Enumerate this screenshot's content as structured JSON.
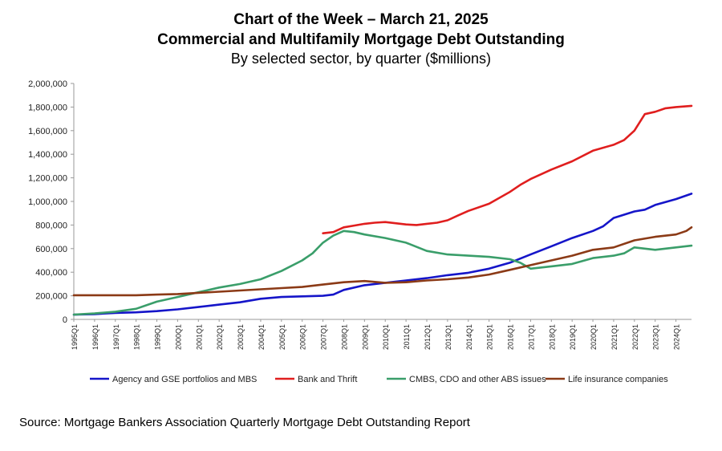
{
  "chart_data": {
    "type": "line",
    "title": "Chart of the Week – March 21, 2025",
    "subtitle": "Commercial and Multifamily Mortgage Debt Outstanding",
    "subtitle2": "By selected sector, by quarter ($millions)",
    "xlabel": "",
    "ylabel": "",
    "ylim": [
      0,
      2000000
    ],
    "yticks": [
      0,
      200000,
      400000,
      600000,
      800000,
      1000000,
      1200000,
      1400000,
      1600000,
      1800000,
      2000000
    ],
    "ytick_labels": [
      "0",
      "200,000",
      "400,000",
      "600,000",
      "800,000",
      "1,000,000",
      "1,200,000",
      "1,400,000",
      "1,600,000",
      "1,800,000",
      "2,000,000"
    ],
    "xlim": [
      1995.0,
      2024.75
    ],
    "xtick_labels": [
      "1995Q1",
      "1996Q1",
      "1997Q1",
      "1998Q1",
      "1999Q1",
      "2000Q1",
      "2001Q1",
      "2002Q1",
      "2003Q1",
      "2004Q1",
      "2005Q1",
      "2006Q1",
      "2007Q1",
      "2008Q1",
      "2009Q1",
      "2010Q1",
      "2011Q1",
      "2012Q1",
      "2013Q1",
      "2014Q1",
      "2015Q1",
      "2016Q1",
      "2017Q1",
      "2018Q1",
      "2019Q1",
      "2020Q1",
      "2021Q1",
      "2022Q1",
      "2023Q1",
      "2024Q1"
    ],
    "xtick_positions": [
      1995,
      1996,
      1997,
      1998,
      1999,
      2000,
      2001,
      2002,
      2003,
      2004,
      2005,
      2006,
      2007,
      2008,
      2009,
      2010,
      2011,
      2012,
      2013,
      2014,
      2015,
      2016,
      2017,
      2018,
      2019,
      2020,
      2021,
      2022,
      2023,
      2024
    ],
    "grid": false,
    "legend_position": "bottom",
    "series": [
      {
        "name": "Agency and GSE portfolios and MBS",
        "color": "#1515c9",
        "x": [
          1995,
          1996,
          1997,
          1998,
          1999,
          2000,
          2001,
          2002,
          2003,
          2004,
          2005,
          2006,
          2007,
          2007.5,
          2008,
          2009,
          2010,
          2011,
          2012,
          2013,
          2014,
          2015,
          2016,
          2017,
          2018,
          2019,
          2020,
          2020.5,
          2021,
          2022,
          2022.5,
          2023,
          2024,
          2024.75
        ],
        "y": [
          40000,
          45000,
          55000,
          60000,
          70000,
          85000,
          105000,
          125000,
          145000,
          175000,
          190000,
          195000,
          200000,
          210000,
          250000,
          290000,
          310000,
          330000,
          350000,
          375000,
          395000,
          430000,
          480000,
          550000,
          620000,
          690000,
          750000,
          790000,
          860000,
          915000,
          930000,
          970000,
          1020000,
          1065000
        ]
      },
      {
        "name": "Bank and Thrift",
        "color": "#e01e1e",
        "x": [
          2007,
          2007.5,
          2008,
          2008.5,
          2009,
          2009.5,
          2010,
          2010.5,
          2011,
          2011.5,
          2012,
          2012.5,
          2013,
          2013.5,
          2014,
          2015,
          2016,
          2016.5,
          2017,
          2017.5,
          2018,
          2019,
          2020,
          2021,
          2021.5,
          2022,
          2022.5,
          2023,
          2023.5,
          2024,
          2024.75
        ],
        "y": [
          730000,
          740000,
          780000,
          795000,
          810000,
          820000,
          825000,
          815000,
          805000,
          800000,
          810000,
          820000,
          840000,
          880000,
          920000,
          980000,
          1080000,
          1140000,
          1190000,
          1230000,
          1270000,
          1340000,
          1430000,
          1480000,
          1520000,
          1600000,
          1740000,
          1760000,
          1790000,
          1800000,
          1810000
        ]
      },
      {
        "name": "CMBS, CDO and other ABS issues",
        "color": "#3a9e6a",
        "x": [
          1995,
          1996,
          1997,
          1998,
          1999,
          2000,
          2001,
          2002,
          2003,
          2004,
          2005,
          2006,
          2006.5,
          2007,
          2007.5,
          2008,
          2008.5,
          2009,
          2010,
          2011,
          2012,
          2013,
          2014,
          2015,
          2016,
          2016.5,
          2017,
          2018,
          2019,
          2020,
          2021,
          2021.5,
          2022,
          2023,
          2024,
          2024.75
        ],
        "y": [
          40000,
          50000,
          65000,
          90000,
          150000,
          190000,
          230000,
          270000,
          300000,
          340000,
          410000,
          500000,
          560000,
          650000,
          710000,
          750000,
          740000,
          720000,
          690000,
          650000,
          580000,
          550000,
          540000,
          530000,
          510000,
          480000,
          430000,
          450000,
          470000,
          520000,
          540000,
          560000,
          610000,
          590000,
          610000,
          625000
        ]
      },
      {
        "name": "Life insurance companies",
        "color": "#8b3a16",
        "x": [
          1995,
          1996,
          1997,
          1998,
          1999,
          2000,
          2001,
          2002,
          2003,
          2004,
          2005,
          2006,
          2007,
          2008,
          2009,
          2010,
          2011,
          2012,
          2013,
          2014,
          2015,
          2016,
          2017,
          2018,
          2019,
          2020,
          2021,
          2022,
          2023,
          2024,
          2024.5,
          2024.75
        ],
        "y": [
          205000,
          205000,
          205000,
          205000,
          210000,
          215000,
          225000,
          235000,
          245000,
          255000,
          265000,
          275000,
          295000,
          315000,
          325000,
          310000,
          315000,
          330000,
          340000,
          355000,
          380000,
          420000,
          460000,
          500000,
          540000,
          590000,
          610000,
          670000,
          700000,
          720000,
          750000,
          780000
        ]
      }
    ]
  },
  "source": "Source: Mortgage Bankers Association Quarterly Mortgage Debt Outstanding Report"
}
